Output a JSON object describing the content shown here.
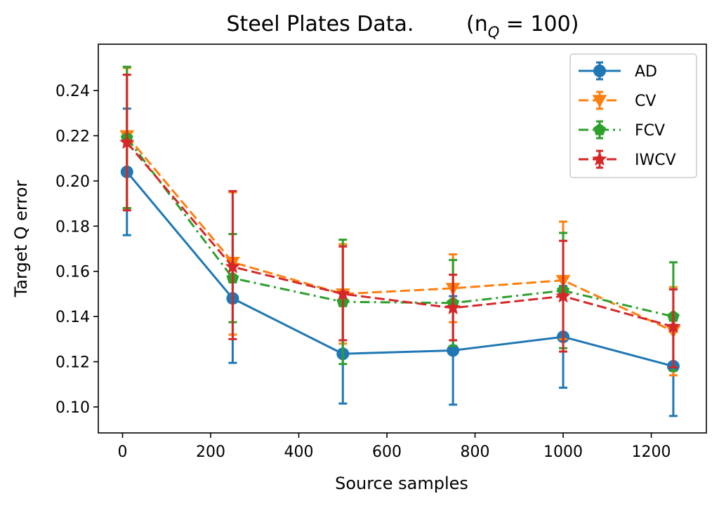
{
  "chart_data": {
    "type": "line",
    "title": "Steel Plates Data.",
    "title_note": "(n",
    "title_note_sub": "Q",
    "title_note_tail": " = 100)",
    "xlabel": "Source samples",
    "ylabel": "Target Q error",
    "xlim": [
      -55,
      1325
    ],
    "ylim": [
      0.0885,
      0.2605
    ],
    "xticks": [
      0,
      200,
      400,
      600,
      800,
      1000,
      1200
    ],
    "xtick_labels": [
      "0",
      "200",
      "400",
      "600",
      "800",
      "1000",
      "1200"
    ],
    "yticks": [
      0.1,
      0.12,
      0.14,
      0.16,
      0.18,
      0.2,
      0.22,
      0.24
    ],
    "ytick_labels": [
      "0.10",
      "0.12",
      "0.14",
      "0.16",
      "0.18",
      "0.20",
      "0.22",
      "0.24"
    ],
    "grid": false,
    "legend_position": "top-right",
    "x": [
      10,
      250,
      500,
      750,
      1000,
      1250
    ],
    "series": [
      {
        "name": "AD",
        "color": "#1f77b4",
        "linestyle": "solid",
        "marker": "circle",
        "values": [
          0.204,
          0.148,
          0.1235,
          0.125,
          0.131,
          0.118
        ],
        "err_low": [
          0.176,
          0.1195,
          0.1015,
          0.101,
          0.1085,
          0.096
        ],
        "err_high": [
          0.232,
          0.1765,
          0.1455,
          0.149,
          0.1535,
          0.14
        ]
      },
      {
        "name": "CV",
        "color": "#ff7f0e",
        "linestyle": "dashed",
        "marker": "triangle-down",
        "values": [
          0.22,
          0.164,
          0.15,
          0.1525,
          0.156,
          0.1335
        ],
        "err_low": [
          0.188,
          0.132,
          0.128,
          0.1375,
          0.13,
          0.114
        ],
        "err_high": [
          0.25,
          0.195,
          0.172,
          0.1675,
          0.182,
          0.153
        ]
      },
      {
        "name": "FCV",
        "color": "#2ca02c",
        "linestyle": "dashdot",
        "marker": "pentagon",
        "values": [
          0.219,
          0.157,
          0.1465,
          0.146,
          0.1515,
          0.14
        ],
        "err_low": [
          0.188,
          0.1375,
          0.119,
          0.127,
          0.126,
          0.116
        ],
        "err_high": [
          0.2505,
          0.1765,
          0.174,
          0.165,
          0.177,
          0.164
        ]
      },
      {
        "name": "IWCV",
        "color": "#d62728",
        "linestyle": "dashed",
        "marker": "star",
        "values": [
          0.217,
          0.162,
          0.15,
          0.1438,
          0.149,
          0.1355
        ],
        "err_low": [
          0.187,
          0.13,
          0.1295,
          0.1295,
          0.1245,
          0.1175
        ],
        "err_high": [
          0.247,
          0.1955,
          0.171,
          0.1585,
          0.1735,
          0.152
        ]
      }
    ]
  }
}
